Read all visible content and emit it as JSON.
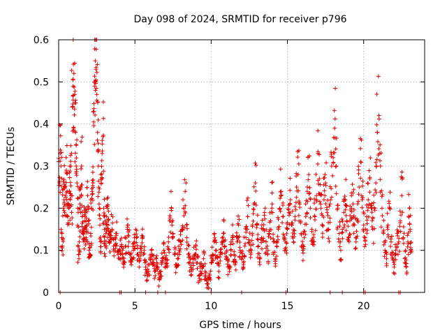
{
  "chart_data": {
    "type": "scatter",
    "title": "Day 098 of 2024, SRMTID for receiver p796",
    "xlabel": "GPS time / hours",
    "ylabel": "SRMTID / TECUs",
    "xlim": [
      0,
      24
    ],
    "ylim": [
      0,
      0.6
    ],
    "x_ticks": [
      0,
      5,
      10,
      15,
      20
    ],
    "x_tick_labels": [
      "0",
      "5",
      "10",
      "15",
      "20"
    ],
    "y_ticks": [
      0,
      0.1,
      0.2,
      0.3,
      0.4,
      0.5,
      0.6
    ],
    "y_tick_labels": [
      "0",
      "0.1",
      "0.2",
      "0.3",
      "0.4",
      "0.5",
      "0.6"
    ],
    "grid": true,
    "marker": "plus",
    "series": [
      {
        "name": "SRMTID",
        "color": "#e00000",
        "points": [
          [
            0.05,
            0.26
          ],
          [
            0.1,
            0.33
          ],
          [
            0.15,
            0.3
          ],
          [
            0.2,
            0.13
          ],
          [
            0.25,
            0.11
          ],
          [
            0.3,
            0.2
          ],
          [
            0.35,
            0.22
          ],
          [
            0.4,
            0.25
          ],
          [
            0.45,
            0.23
          ],
          [
            0.5,
            0.29
          ],
          [
            0.55,
            0.24
          ],
          [
            0.6,
            0.18
          ],
          [
            0.65,
            0.2
          ],
          [
            0.7,
            0.24
          ],
          [
            0.75,
            0.22
          ],
          [
            0.8,
            0.3
          ],
          [
            0.85,
            0.19
          ],
          [
            0.9,
            0.44
          ],
          [
            0.95,
            0.49
          ],
          [
            1.0,
            0.52
          ],
          [
            1.05,
            0.47
          ],
          [
            1.1,
            0.38
          ],
          [
            1.15,
            0.3
          ],
          [
            1.2,
            0.26
          ],
          [
            1.25,
            0.2
          ],
          [
            1.3,
            0.09
          ],
          [
            1.35,
            0.12
          ],
          [
            1.4,
            0.21
          ],
          [
            1.45,
            0.25
          ],
          [
            1.5,
            0.3
          ],
          [
            1.55,
            0.18
          ],
          [
            1.6,
            0.14
          ],
          [
            1.65,
            0.12
          ],
          [
            1.7,
            0.17
          ],
          [
            1.75,
            0.19
          ],
          [
            1.8,
            0.13
          ],
          [
            1.85,
            0.16
          ],
          [
            1.9,
            0.23
          ],
          [
            1.95,
            0.17
          ],
          [
            2.0,
            0.1
          ],
          [
            2.05,
            0.09
          ],
          [
            2.1,
            0.14
          ],
          [
            2.15,
            0.2
          ],
          [
            2.2,
            0.24
          ],
          [
            2.25,
            0.26
          ],
          [
            2.3,
            0.43
          ],
          [
            2.35,
            0.49
          ],
          [
            2.4,
            0.55
          ],
          [
            2.45,
            0.53
          ],
          [
            2.5,
            0.47
          ],
          [
            2.55,
            0.38
          ],
          [
            2.6,
            0.3
          ],
          [
            2.65,
            0.21
          ],
          [
            2.7,
            0.16
          ],
          [
            2.75,
            0.12
          ],
          [
            2.8,
            0.26
          ],
          [
            2.85,
            0.33
          ],
          [
            2.9,
            0.37
          ],
          [
            2.95,
            0.2
          ],
          [
            3.0,
            0.15
          ],
          [
            3.05,
            0.11
          ],
          [
            3.1,
            0.14
          ],
          [
            3.15,
            0.18
          ],
          [
            3.2,
            0.2
          ],
          [
            3.25,
            0.16
          ],
          [
            3.3,
            0.14
          ],
          [
            3.35,
            0.12
          ],
          [
            3.4,
            0.13
          ],
          [
            3.5,
            0.15
          ],
          [
            3.6,
            0.11
          ],
          [
            3.7,
            0.13
          ],
          [
            3.8,
            0.14
          ],
          [
            3.9,
            0.09
          ],
          [
            4.0,
            0.1
          ],
          [
            4.1,
            0.11
          ],
          [
            4.2,
            0.09
          ],
          [
            4.3,
            0.07
          ],
          [
            4.4,
            0.11
          ],
          [
            4.5,
            0.15
          ],
          [
            4.6,
            0.12
          ],
          [
            4.7,
            0.09
          ],
          [
            4.8,
            0.08
          ],
          [
            4.9,
            0.1
          ],
          [
            5.0,
            0.11
          ],
          [
            5.1,
            0.13
          ],
          [
            5.2,
            0.09
          ],
          [
            5.3,
            0.08
          ],
          [
            5.4,
            0.11
          ],
          [
            5.5,
            0.13
          ],
          [
            5.6,
            0.1
          ],
          [
            5.7,
            0.06
          ],
          [
            5.8,
            0.04
          ],
          [
            5.9,
            0.05
          ],
          [
            6.0,
            0.08
          ],
          [
            6.1,
            0.09
          ],
          [
            6.2,
            0.07
          ],
          [
            6.3,
            0.05
          ],
          [
            6.4,
            0.08
          ],
          [
            6.5,
            0.06
          ],
          [
            6.6,
            0.03
          ],
          [
            6.7,
            0.05
          ],
          [
            6.8,
            0.08
          ],
          [
            6.9,
            0.1
          ],
          [
            7.0,
            0.07
          ],
          [
            7.1,
            0.06
          ],
          [
            7.2,
            0.12
          ],
          [
            7.3,
            0.17
          ],
          [
            7.4,
            0.2
          ],
          [
            7.5,
            0.14
          ],
          [
            7.6,
            0.09
          ],
          [
            7.7,
            0.06
          ],
          [
            7.8,
            0.08
          ],
          [
            7.9,
            0.1
          ],
          [
            8.0,
            0.12
          ],
          [
            8.1,
            0.15
          ],
          [
            8.2,
            0.2
          ],
          [
            8.3,
            0.24
          ],
          [
            8.4,
            0.13
          ],
          [
            8.5,
            0.09
          ],
          [
            8.6,
            0.07
          ],
          [
            8.7,
            0.05
          ],
          [
            8.8,
            0.07
          ],
          [
            8.9,
            0.09
          ],
          [
            9.0,
            0.11
          ],
          [
            9.1,
            0.07
          ],
          [
            9.2,
            0.04
          ],
          [
            9.3,
            0.05
          ],
          [
            9.4,
            0.06
          ],
          [
            9.5,
            0.08
          ],
          [
            9.6,
            0.05
          ],
          [
            9.7,
            0.03
          ],
          [
            9.8,
            0.02
          ],
          [
            9.9,
            0.04
          ],
          [
            10.0,
            0.07
          ],
          [
            10.1,
            0.09
          ],
          [
            10.2,
            0.12
          ],
          [
            10.3,
            0.1
          ],
          [
            10.4,
            0.07
          ],
          [
            10.5,
            0.05
          ],
          [
            10.6,
            0.09
          ],
          [
            10.7,
            0.12
          ],
          [
            10.8,
            0.14
          ],
          [
            10.9,
            0.11
          ],
          [
            11.0,
            0.08
          ],
          [
            11.1,
            0.06
          ],
          [
            11.2,
            0.05
          ],
          [
            11.3,
            0.1
          ],
          [
            11.4,
            0.13
          ],
          [
            11.5,
            0.09
          ],
          [
            11.6,
            0.07
          ],
          [
            11.7,
            0.12
          ],
          [
            11.8,
            0.16
          ],
          [
            11.9,
            0.1
          ],
          [
            12.0,
            0.08
          ],
          [
            12.1,
            0.06
          ],
          [
            12.2,
            0.11
          ],
          [
            12.3,
            0.15
          ],
          [
            12.4,
            0.18
          ],
          [
            12.5,
            0.12
          ],
          [
            12.6,
            0.09
          ],
          [
            12.7,
            0.14
          ],
          [
            12.8,
            0.21
          ],
          [
            12.9,
            0.26
          ],
          [
            13.0,
            0.16
          ],
          [
            13.1,
            0.11
          ],
          [
            13.2,
            0.08
          ],
          [
            13.3,
            0.13
          ],
          [
            13.4,
            0.15
          ],
          [
            13.5,
            0.19
          ],
          [
            13.6,
            0.12
          ],
          [
            13.7,
            0.09
          ],
          [
            13.8,
            0.14
          ],
          [
            13.9,
            0.17
          ],
          [
            14.0,
            0.21
          ],
          [
            14.1,
            0.12
          ],
          [
            14.2,
            0.08
          ],
          [
            14.3,
            0.11
          ],
          [
            14.4,
            0.15
          ],
          [
            14.5,
            0.2
          ],
          [
            14.6,
            0.24
          ],
          [
            14.7,
            0.18
          ],
          [
            14.8,
            0.13
          ],
          [
            14.9,
            0.1
          ],
          [
            15.0,
            0.15
          ],
          [
            15.1,
            0.19
          ],
          [
            15.2,
            0.22
          ],
          [
            15.3,
            0.16
          ],
          [
            15.4,
            0.12
          ],
          [
            15.5,
            0.18
          ],
          [
            15.6,
            0.25
          ],
          [
            15.7,
            0.28
          ],
          [
            15.8,
            0.21
          ],
          [
            15.9,
            0.14
          ],
          [
            16.0,
            0.1
          ],
          [
            16.1,
            0.13
          ],
          [
            16.2,
            0.18
          ],
          [
            16.3,
            0.24
          ],
          [
            16.4,
            0.28
          ],
          [
            16.5,
            0.2
          ],
          [
            16.6,
            0.15
          ],
          [
            16.7,
            0.12
          ],
          [
            16.8,
            0.18
          ],
          [
            16.9,
            0.23
          ],
          [
            17.0,
            0.33
          ],
          [
            17.1,
            0.27
          ],
          [
            17.2,
            0.2
          ],
          [
            17.3,
            0.16
          ],
          [
            17.4,
            0.22
          ],
          [
            17.5,
            0.26
          ],
          [
            17.6,
            0.19
          ],
          [
            17.7,
            0.15
          ],
          [
            17.8,
            0.21
          ],
          [
            17.9,
            0.3
          ],
          [
            18.0,
            0.32
          ],
          [
            18.1,
            0.39
          ],
          [
            18.2,
            0.3
          ],
          [
            18.3,
            0.2
          ],
          [
            18.4,
            0.14
          ],
          [
            18.5,
            0.1
          ],
          [
            18.6,
            0.15
          ],
          [
            18.7,
            0.19
          ],
          [
            18.8,
            0.22
          ],
          [
            18.9,
            0.17
          ],
          [
            19.0,
            0.13
          ],
          [
            19.1,
            0.17
          ],
          [
            19.2,
            0.23
          ],
          [
            19.3,
            0.21
          ],
          [
            19.4,
            0.16
          ],
          [
            19.5,
            0.12
          ],
          [
            19.6,
            0.17
          ],
          [
            19.7,
            0.25
          ],
          [
            19.8,
            0.31
          ],
          [
            19.9,
            0.22
          ],
          [
            20.0,
            0.16
          ],
          [
            20.1,
            0.13
          ],
          [
            20.2,
            0.18
          ],
          [
            20.3,
            0.22
          ],
          [
            20.4,
            0.27
          ],
          [
            20.5,
            0.2
          ],
          [
            20.6,
            0.15
          ],
          [
            20.7,
            0.2
          ],
          [
            20.8,
            0.26
          ],
          [
            20.9,
            0.38
          ],
          [
            21.0,
            0.42
          ],
          [
            21.1,
            0.3
          ],
          [
            21.2,
            0.2
          ],
          [
            21.3,
            0.14
          ],
          [
            21.4,
            0.1
          ],
          [
            21.5,
            0.08
          ],
          [
            21.6,
            0.16
          ],
          [
            21.7,
            0.2
          ],
          [
            21.8,
            0.12
          ],
          [
            21.9,
            0.08
          ],
          [
            22.0,
            0.06
          ],
          [
            22.1,
            0.1
          ],
          [
            22.2,
            0.14
          ],
          [
            22.3,
            0.12
          ],
          [
            22.4,
            0.17
          ],
          [
            22.5,
            0.23
          ],
          [
            22.6,
            0.13
          ],
          [
            22.7,
            0.08
          ],
          [
            22.8,
            0.06
          ],
          [
            22.9,
            0.12
          ],
          [
            23.0,
            0.2
          ],
          [
            23.05,
            0.15
          ],
          [
            23.1,
            0.1
          ]
        ],
        "zero_points": [
          0.1,
          4.0,
          4.1,
          5.7,
          6.5,
          7.0,
          10.0,
          12.0,
          14.9,
          17.8,
          18.6,
          20.0,
          20.1,
          22.3,
          22.4
        ]
      }
    ]
  }
}
